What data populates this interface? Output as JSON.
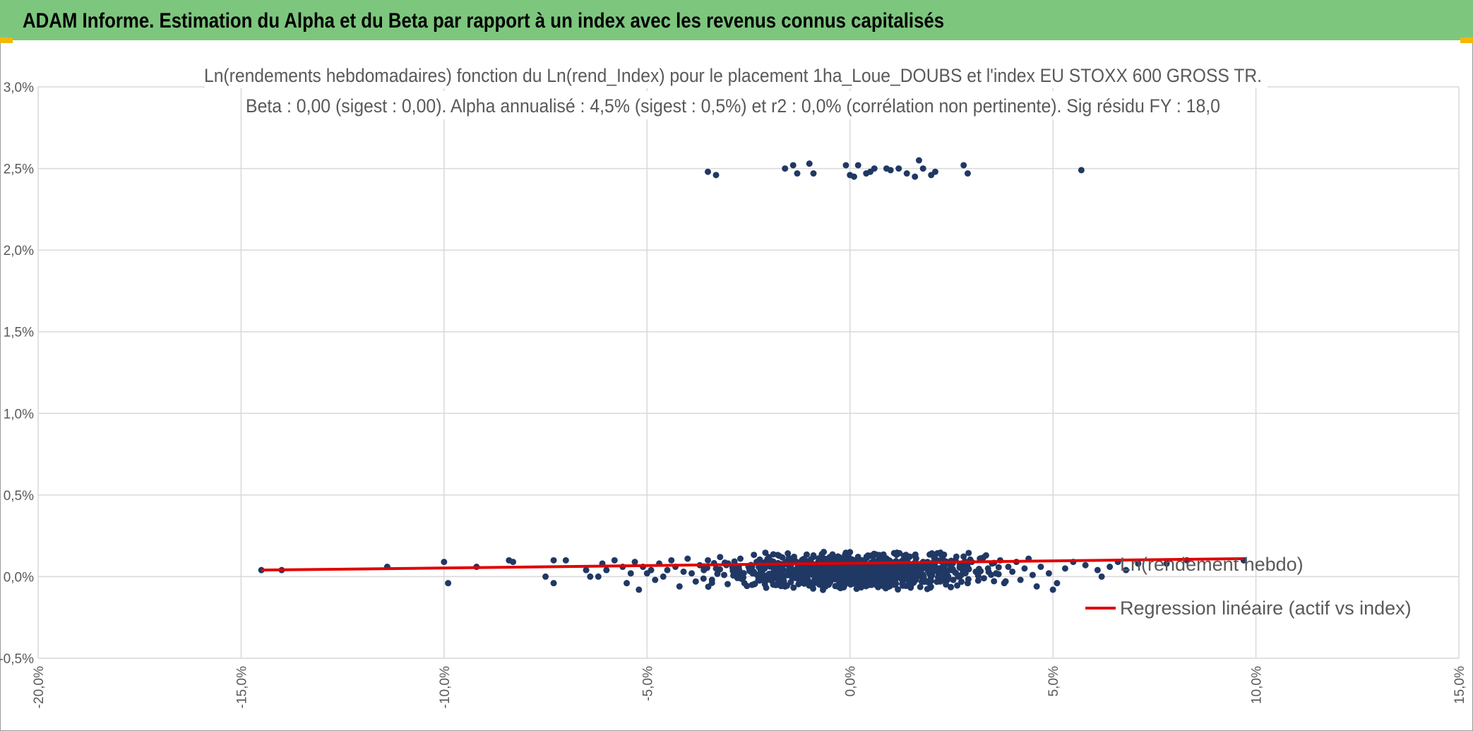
{
  "header": {
    "title": "ADAM Informe. Estimation du Alpha et du Beta par rapport à un index avec les revenus connus capitalisés"
  },
  "colors": {
    "banner": "#7dc67e",
    "corner_accent": "#f3b800",
    "points": "#203864",
    "regression": "#e00000",
    "grid": "#d9d9d9",
    "text": "#595959"
  },
  "chart_data": {
    "type": "scatter",
    "title": "Ln(rendements hebdomadaires) fonction du Ln(rend_Index) pour le placement 1ha_Loue_DOUBS et l'index EU STOXX 600 GROSS TR.",
    "subtitle": "Beta : 0,00 (sigest : 0,00). Alpha annualisé : 4,5% (sigest : 0,5%) et r2 : 0,0% (corrélation non pertinente). Sig résidu FY : 18,0",
    "x_range": [
      -0.2,
      0.15
    ],
    "y_range": [
      -0.005,
      0.03
    ],
    "x_ticks": [
      "-20,0%",
      "-15,0%",
      "-10,0%",
      "-5,0%",
      "0,0%",
      "5,0%",
      "10,0%",
      "15,0%"
    ],
    "y_ticks": [
      "3,0%",
      "2,5%",
      "2,0%",
      "1,5%",
      "1,0%",
      "0,5%",
      "0,0%",
      "-0,5%"
    ],
    "grid": "both",
    "legend_position": "right",
    "series": [
      {
        "name": "Ln(rendement hebdo)",
        "kind": "points",
        "points": [
          [
            -0.145,
            0.0004
          ],
          [
            -0.14,
            0.0004
          ],
          [
            -0.114,
            0.0006
          ],
          [
            -0.1,
            0.0009
          ],
          [
            -0.099,
            -0.0004
          ],
          [
            -0.092,
            0.0006
          ],
          [
            -0.084,
            0.001
          ],
          [
            -0.083,
            0.0009
          ],
          [
            -0.075,
            0.0
          ],
          [
            -0.073,
            0.001
          ],
          [
            -0.073,
            -0.0004
          ],
          [
            -0.07,
            0.001
          ],
          [
            -0.065,
            0.0004
          ],
          [
            -0.064,
            0.0
          ],
          [
            -0.062,
            0.0
          ],
          [
            -0.061,
            0.0008
          ],
          [
            -0.06,
            0.0004
          ],
          [
            -0.058,
            0.001
          ],
          [
            -0.056,
            0.0006
          ],
          [
            -0.055,
            -0.0004
          ],
          [
            -0.054,
            0.0002
          ],
          [
            -0.053,
            0.0009
          ],
          [
            -0.052,
            -0.0008
          ],
          [
            -0.051,
            0.0006
          ],
          [
            -0.05,
            0.0002
          ],
          [
            -0.049,
            0.0004
          ],
          [
            -0.048,
            -0.0002
          ],
          [
            -0.047,
            0.0008
          ],
          [
            -0.046,
            0.0
          ],
          [
            -0.045,
            0.0004
          ],
          [
            -0.044,
            0.001
          ],
          [
            -0.043,
            0.0006
          ],
          [
            -0.042,
            -0.0006
          ],
          [
            -0.041,
            0.0003
          ],
          [
            -0.04,
            0.0011
          ],
          [
            -0.039,
            0.0002
          ],
          [
            -0.038,
            -0.0003
          ],
          [
            -0.037,
            0.0007
          ],
          [
            -0.036,
            0.0004
          ],
          [
            -0.035,
            0.001
          ],
          [
            -0.034,
            -0.0002
          ],
          [
            -0.033,
            0.0005
          ],
          [
            -0.032,
            0.0012
          ],
          [
            -0.031,
            0.0001
          ],
          [
            -0.03,
            0.0008
          ],
          [
            -0.028,
            0.0003
          ],
          [
            -0.027,
            0.0011
          ],
          [
            -0.026,
            -0.0004
          ],
          [
            -0.025,
            0.0006
          ],
          [
            -0.024,
            0.0002
          ],
          [
            -0.023,
            0.0009
          ],
          [
            -0.022,
            -0.0002
          ],
          [
            -0.021,
            0.0005
          ],
          [
            -0.02,
            0.0012
          ],
          [
            -0.019,
            0.0
          ],
          [
            -0.018,
            0.0007
          ],
          [
            -0.017,
            0.0003
          ],
          [
            -0.016,
            -0.0005
          ],
          [
            -0.015,
            0.001
          ],
          [
            -0.014,
            0.0004
          ],
          [
            -0.013,
            0.0001
          ],
          [
            -0.012,
            0.0008
          ],
          [
            -0.011,
            -0.0003
          ],
          [
            -0.01,
            0.0006
          ],
          [
            -0.009,
            0.0013
          ],
          [
            -0.008,
            0.0002
          ],
          [
            -0.007,
            0.0009
          ],
          [
            -0.006,
            -0.0006
          ],
          [
            -0.005,
            0.0004
          ],
          [
            -0.004,
            0.0011
          ],
          [
            -0.003,
            0.0
          ],
          [
            -0.002,
            0.0007
          ],
          [
            -0.001,
            0.0003
          ],
          [
            0.0,
            0.0015
          ],
          [
            0.001,
            -0.0004
          ],
          [
            0.002,
            0.0006
          ],
          [
            0.003,
            0.001
          ],
          [
            0.004,
            0.0002
          ],
          [
            0.005,
            0.0008
          ],
          [
            0.006,
            -0.0002
          ],
          [
            0.007,
            0.0005
          ],
          [
            0.008,
            0.0012
          ],
          [
            0.009,
            0.0001
          ],
          [
            0.01,
            0.0007
          ],
          [
            0.011,
            -0.0005
          ],
          [
            0.012,
            0.0004
          ],
          [
            0.013,
            0.001
          ],
          [
            0.014,
            0.0
          ],
          [
            0.015,
            0.0006
          ],
          [
            0.016,
            0.0013
          ],
          [
            0.017,
            0.0002
          ],
          [
            0.018,
            0.0009
          ],
          [
            0.019,
            -0.0003
          ],
          [
            0.02,
            0.0005
          ],
          [
            0.021,
            0.0011
          ],
          [
            0.022,
            0.0001
          ],
          [
            0.023,
            0.0007
          ],
          [
            0.024,
            -0.0002
          ],
          [
            0.025,
            0.0004
          ],
          [
            0.026,
            0.001
          ],
          [
            0.027,
            0.0
          ],
          [
            0.028,
            0.0006
          ],
          [
            0.029,
            -0.0004
          ],
          [
            0.03,
            0.0009
          ],
          [
            0.031,
            0.0003
          ],
          [
            0.032,
            0.0011
          ],
          [
            0.033,
            -0.0001
          ],
          [
            0.034,
            0.0005
          ],
          [
            0.035,
            0.0008
          ],
          [
            0.036,
            0.0002
          ],
          [
            0.037,
            0.001
          ],
          [
            0.038,
            -0.0004
          ],
          [
            0.039,
            0.0006
          ],
          [
            0.04,
            0.0003
          ],
          [
            0.041,
            0.0009
          ],
          [
            0.042,
            -0.0002
          ],
          [
            0.043,
            0.0005
          ],
          [
            0.044,
            0.0011
          ],
          [
            0.045,
            0.0001
          ],
          [
            0.046,
            -0.0006
          ],
          [
            0.047,
            0.0006
          ],
          [
            0.049,
            0.0002
          ],
          [
            0.05,
            -0.0008
          ],
          [
            0.051,
            -0.0004
          ],
          [
            0.053,
            0.0005
          ],
          [
            0.055,
            0.0009
          ],
          [
            0.058,
            0.0007
          ],
          [
            0.061,
            0.0004
          ],
          [
            0.062,
            0.0
          ],
          [
            0.064,
            0.0006
          ],
          [
            0.066,
            0.0009
          ],
          [
            0.068,
            0.0004
          ],
          [
            0.071,
            0.0008
          ],
          [
            0.078,
            0.0008
          ],
          [
            0.083,
            0.001
          ],
          [
            0.097,
            0.001
          ],
          [
            -0.035,
            0.0248
          ],
          [
            -0.033,
            0.0246
          ],
          [
            -0.016,
            0.025
          ],
          [
            -0.014,
            0.0252
          ],
          [
            -0.013,
            0.0247
          ],
          [
            -0.01,
            0.0253
          ],
          [
            -0.009,
            0.0247
          ],
          [
            -0.001,
            0.0252
          ],
          [
            0.0,
            0.0246
          ],
          [
            0.001,
            0.0245
          ],
          [
            0.002,
            0.0252
          ],
          [
            0.004,
            0.0247
          ],
          [
            0.005,
            0.0248
          ],
          [
            0.006,
            0.025
          ],
          [
            0.009,
            0.025
          ],
          [
            0.01,
            0.0249
          ],
          [
            0.012,
            0.025
          ],
          [
            0.014,
            0.0247
          ],
          [
            0.016,
            0.0245
          ],
          [
            0.017,
            0.0255
          ],
          [
            0.018,
            0.025
          ],
          [
            0.02,
            0.0246
          ],
          [
            0.021,
            0.0248
          ],
          [
            0.028,
            0.0252
          ],
          [
            0.029,
            0.0247
          ],
          [
            0.057,
            0.0249
          ]
        ]
      },
      {
        "name": "Regression linéaire (actif vs index)",
        "kind": "line",
        "x": [
          -0.145,
          0.097
        ],
        "y": [
          0.0004,
          0.0011
        ]
      }
    ]
  }
}
